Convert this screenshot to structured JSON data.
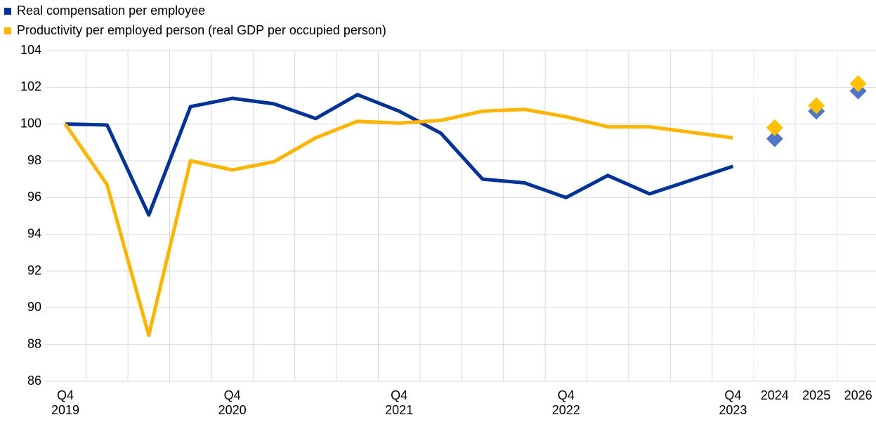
{
  "chart_data": {
    "type": "line",
    "categories": [
      "Q4\n2019",
      null,
      null,
      null,
      "Q4\n2020",
      null,
      null,
      null,
      "Q4\n2021",
      null,
      null,
      null,
      "Q4\n2022",
      null,
      null,
      null,
      "Q4\n2023",
      "2024",
      "2025",
      "2026"
    ],
    "series": [
      {
        "name": "Real compensation per employee",
        "color": "#003299",
        "marker_color": "#4f74c8",
        "values": [
          100,
          99.95,
          95.05,
          100.95,
          101.4,
          101.1,
          100.3,
          101.6,
          100.7,
          99.5,
          97.0,
          96.8,
          96.0,
          97.2,
          96.2,
          96.95,
          97.7,
          null,
          null,
          null
        ],
        "markers": [
          null,
          null,
          null,
          null,
          null,
          null,
          null,
          null,
          null,
          null,
          null,
          null,
          null,
          null,
          null,
          null,
          null,
          99.2,
          100.7,
          101.8
        ]
      },
      {
        "name": "Productivity per employed person (real GDP per occupied person)",
        "color": "#ffb400",
        "marker_color": "#ffc000",
        "values": [
          100,
          96.7,
          88.5,
          98.0,
          97.5,
          97.95,
          99.25,
          100.15,
          100.05,
          100.2,
          100.7,
          100.8,
          100.4,
          99.85,
          99.85,
          99.55,
          99.25,
          null,
          null,
          null
        ],
        "markers": [
          null,
          null,
          null,
          null,
          null,
          null,
          null,
          null,
          null,
          null,
          null,
          null,
          null,
          null,
          null,
          null,
          null,
          99.8,
          101.0,
          102.2
        ]
      }
    ],
    "ylim": [
      86,
      104
    ],
    "yticks": [
      86,
      88,
      90,
      92,
      94,
      96,
      98,
      100,
      102,
      104
    ],
    "grid": true,
    "legend": "top-left"
  }
}
